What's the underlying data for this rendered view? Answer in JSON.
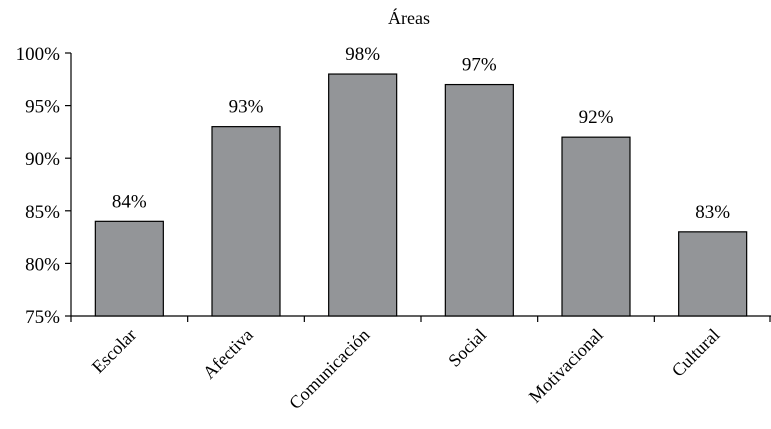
{
  "chart_data": {
    "type": "bar",
    "title": "Áreas",
    "categories": [
      "Escolar",
      "Afectiva",
      "Comunicación",
      "Social",
      "Motivacional",
      "Cultural"
    ],
    "values": [
      84,
      93,
      98,
      97,
      92,
      83
    ],
    "data_labels": [
      "84%",
      "93%",
      "98%",
      "97%",
      "92%",
      "83%"
    ],
    "ylim": [
      75,
      100
    ],
    "yticks": [
      75,
      80,
      85,
      90,
      95,
      100
    ],
    "ytick_labels": [
      "75%",
      "80%",
      "85%",
      "90%",
      "95%",
      "100%"
    ],
    "xlabel": "",
    "ylabel": "",
    "grid": false,
    "legend": "none",
    "bar_color": "#939598",
    "bar_edge_color": "#000000"
  }
}
